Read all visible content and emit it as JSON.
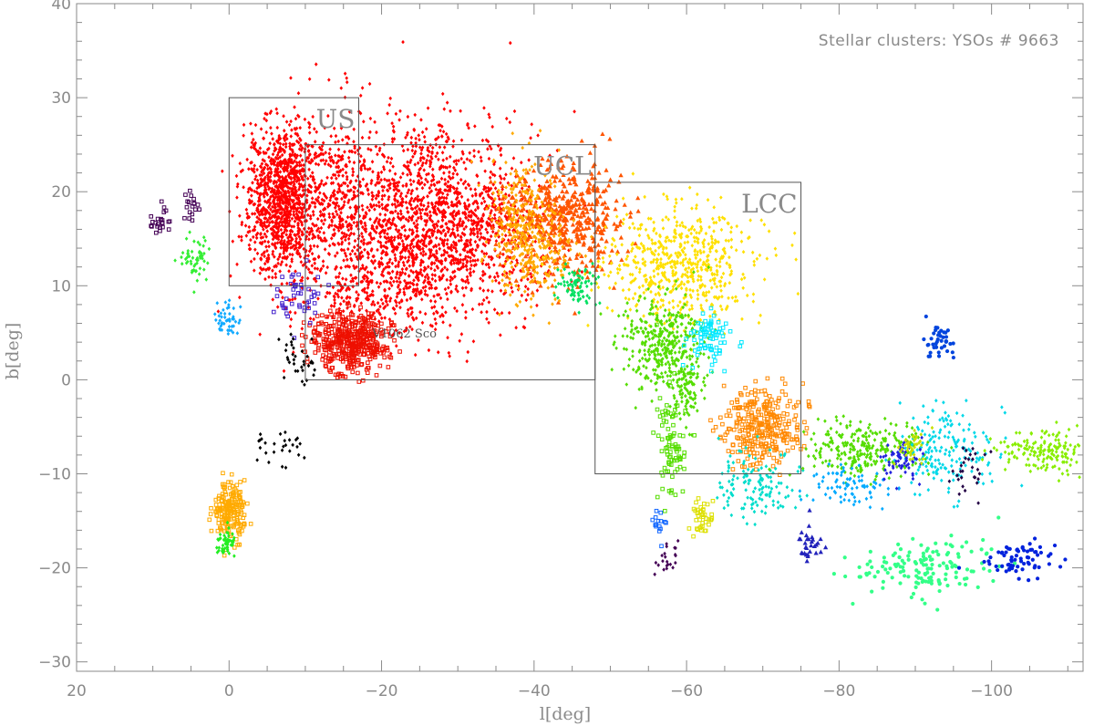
{
  "chart_data": {
    "type": "scatter",
    "title": "",
    "annotation": "Stellar clusters: YSOs # 9663",
    "xlabel": "l[deg]",
    "ylabel": "b[deg]",
    "xlim": [
      20,
      -112
    ],
    "ylim": [
      -31,
      40
    ],
    "xticks": [
      20,
      0,
      -20,
      -40,
      -60,
      -80,
      -100
    ],
    "xtick_labels": [
      "20",
      "0",
      "−20",
      "−40",
      "−60",
      "−80",
      "−100"
    ],
    "yticks": [
      -30,
      -20,
      -10,
      0,
      10,
      20,
      30,
      40
    ],
    "ytick_labels": [
      "−30",
      "−20",
      "−10",
      "0",
      "10",
      "20",
      "30",
      "40"
    ],
    "grid": false,
    "regions": [
      {
        "label": "US",
        "l_range": [
          0,
          -17
        ],
        "b_range": [
          10,
          30
        ]
      },
      {
        "label": "UCL",
        "l_range": [
          -10,
          -48
        ],
        "b_range": [
          0,
          25
        ]
      },
      {
        "label": "LCC",
        "l_range": [
          -48,
          -75
        ],
        "b_range": [
          -10,
          21
        ]
      }
    ],
    "point_labels": [
      {
        "text": "V1062 Sco",
        "l": -23,
        "b": 5
      }
    ],
    "series": [
      {
        "color": "#ff0000",
        "marker": "diamond",
        "clusters": [
          {
            "l": -7,
            "b": 19,
            "sl": 2.5,
            "sb": 4,
            "n": 1100
          },
          {
            "l": -14,
            "b": 19,
            "sl": 3,
            "sb": 5,
            "n": 300
          },
          {
            "l": -25,
            "b": 18,
            "sl": 6,
            "sb": 5,
            "n": 1100
          },
          {
            "l": -32,
            "b": 15,
            "sl": 5,
            "sb": 4,
            "n": 500
          },
          {
            "l": -20,
            "b": 10,
            "sl": 5,
            "sb": 3,
            "n": 350
          }
        ]
      },
      {
        "color": "#ee1000",
        "marker": "square",
        "clusters": [
          {
            "l": -16,
            "b": 4,
            "sl": 2.5,
            "sb": 1.5,
            "n": 450
          }
        ]
      },
      {
        "color": "#ff5500",
        "marker": "triangle",
        "clusters": [
          {
            "l": -44,
            "b": 17,
            "sl": 4,
            "sb": 3,
            "n": 500
          }
        ]
      },
      {
        "color": "#ffaa00",
        "marker": "diamond",
        "clusters": [
          {
            "l": -38,
            "b": 18,
            "sl": 2.5,
            "sb": 3,
            "n": 200
          },
          {
            "l": -40,
            "b": 13,
            "sl": 2.5,
            "sb": 2.5,
            "n": 200
          }
        ]
      },
      {
        "color": "#ffe000",
        "marker": "diamond",
        "clusters": [
          {
            "l": -59,
            "b": 12,
            "sl": 5,
            "sb": 3,
            "n": 600
          }
        ]
      },
      {
        "color": "#00e060",
        "marker": "diamond",
        "clusters": [
          {
            "l": -46,
            "b": 10,
            "sl": 1.5,
            "sb": 1,
            "n": 80
          }
        ]
      },
      {
        "color": "#55dd00",
        "marker": "diamond",
        "clusters": [
          {
            "l": -57,
            "b": 4,
            "sl": 2.5,
            "sb": 2.5,
            "n": 350
          },
          {
            "l": -60,
            "b": -1,
            "sl": 1,
            "sb": 2,
            "n": 100
          }
        ]
      },
      {
        "color": "#55dd00",
        "marker": "square",
        "clusters": [
          {
            "l": -58,
            "b": -7,
            "sl": 1,
            "sb": 3,
            "n": 90
          }
        ]
      },
      {
        "color": "#00e8ff",
        "marker": "square",
        "clusters": [
          {
            "l": -63,
            "b": 4.5,
            "sl": 1.5,
            "sb": 1.3,
            "n": 80
          }
        ]
      },
      {
        "color": "#ff8800",
        "marker": "square",
        "clusters": [
          {
            "l": -70,
            "b": -5,
            "sl": 2.5,
            "sb": 2,
            "n": 300
          }
        ]
      },
      {
        "color": "#00ddcc",
        "marker": "diamond",
        "clusters": [
          {
            "l": -69,
            "b": -11,
            "sl": 2.5,
            "sb": 2,
            "n": 130
          }
        ]
      },
      {
        "color": "#55dd00",
        "marker": "diamond",
        "clusters": [
          {
            "l": -83,
            "b": -7.5,
            "sl": 4,
            "sb": 1.5,
            "n": 260
          }
        ]
      },
      {
        "color": "#00aaff",
        "marker": "diamond",
        "clusters": [
          {
            "l": -82,
            "b": -11.5,
            "sl": 2.5,
            "sb": 1.2,
            "n": 80
          }
        ]
      },
      {
        "color": "#00d8e8",
        "marker": "diamond",
        "clusters": [
          {
            "l": -94,
            "b": -7.5,
            "sl": 3,
            "sb": 2.5,
            "n": 180
          }
        ]
      },
      {
        "color": "#2222dd",
        "marker": "diamond",
        "clusters": [
          {
            "l": -88,
            "b": -8.5,
            "sl": 1.5,
            "sb": 1.2,
            "n": 60
          }
        ]
      },
      {
        "color": "#c8e000",
        "marker": "diamond",
        "clusters": [
          {
            "l": -89.5,
            "b": -7,
            "sl": 0.8,
            "sb": 0.9,
            "n": 40
          }
        ]
      },
      {
        "color": "#88ee00",
        "marker": "diamond",
        "clusters": [
          {
            "l": -107,
            "b": -7.5,
            "sl": 3,
            "sb": 1.2,
            "n": 160
          }
        ]
      },
      {
        "color": "#220044",
        "marker": "diamond",
        "clusters": [
          {
            "l": -97,
            "b": -9.5,
            "sl": 1.2,
            "sb": 1.2,
            "n": 30
          }
        ]
      },
      {
        "color": "#0044dd",
        "marker": "circle",
        "clusters": [
          {
            "l": -93,
            "b": 4,
            "sl": 1,
            "sb": 1,
            "n": 40
          }
        ]
      },
      {
        "color": "#33ff88",
        "marker": "circle",
        "clusters": [
          {
            "l": -92,
            "b": -20,
            "sl": 4.5,
            "sb": 1.5,
            "n": 150
          }
        ]
      },
      {
        "color": "#0022dd",
        "marker": "circle",
        "clusters": [
          {
            "l": -104,
            "b": -19,
            "sl": 2.5,
            "sb": 1,
            "n": 70
          }
        ]
      },
      {
        "color": "#2222bb",
        "marker": "triangle",
        "clusters": [
          {
            "l": -76.5,
            "b": -17.5,
            "sl": 1,
            "sb": 1,
            "n": 30
          }
        ]
      },
      {
        "color": "#dde000",
        "marker": "square",
        "clusters": [
          {
            "l": -62,
            "b": -15,
            "sl": 0.7,
            "sb": 1,
            "n": 40
          }
        ]
      },
      {
        "color": "#1166ff",
        "marker": "square",
        "clusters": [
          {
            "l": -56.5,
            "b": -15,
            "sl": 0.4,
            "sb": 1.2,
            "n": 15
          }
        ]
      },
      {
        "color": "#440055",
        "marker": "diamond",
        "clusters": [
          {
            "l": -57.5,
            "b": -19,
            "sl": 0.7,
            "sb": 1,
            "n": 22
          }
        ]
      },
      {
        "color": "#440055",
        "marker": "square",
        "clusters": [
          {
            "l": 9,
            "b": 17,
            "sl": 0.8,
            "sb": 0.9,
            "n": 25
          },
          {
            "l": 5,
            "b": 18.5,
            "sl": 0.5,
            "sb": 0.8,
            "n": 18
          }
        ]
      },
      {
        "color": "#33ee33",
        "marker": "diamond",
        "clusters": [
          {
            "l": 4.5,
            "b": 13,
            "sl": 1,
            "sb": 1.2,
            "n": 55
          }
        ]
      },
      {
        "color": "#11aaff",
        "marker": "diamond",
        "clusters": [
          {
            "l": 0.5,
            "b": 6.5,
            "sl": 1,
            "sb": 0.9,
            "n": 45
          }
        ]
      },
      {
        "color": "#4422cc",
        "marker": "square",
        "clusters": [
          {
            "l": -9.5,
            "b": 9,
            "sl": 1.5,
            "sb": 1.5,
            "n": 45
          }
        ]
      },
      {
        "color": "#000000",
        "marker": "diamond",
        "clusters": [
          {
            "l": -8.5,
            "b": 3,
            "sl": 0.8,
            "sb": 1.5,
            "n": 22
          },
          {
            "l": -10.5,
            "b": 1,
            "sl": 0.6,
            "sb": 1,
            "n": 12
          },
          {
            "l": -7,
            "b": -7,
            "sl": 2,
            "sb": 1.2,
            "n": 28
          }
        ]
      },
      {
        "color": "#ffaa00",
        "marker": "square",
        "clusters": [
          {
            "l": 0,
            "b": -14,
            "sl": 1,
            "sb": 1.5,
            "n": 200
          }
        ]
      },
      {
        "color": "#22ee22",
        "marker": "diamond",
        "clusters": [
          {
            "l": 0.5,
            "b": -17.5,
            "sl": 0.7,
            "sb": 0.7,
            "n": 50
          }
        ]
      }
    ]
  }
}
